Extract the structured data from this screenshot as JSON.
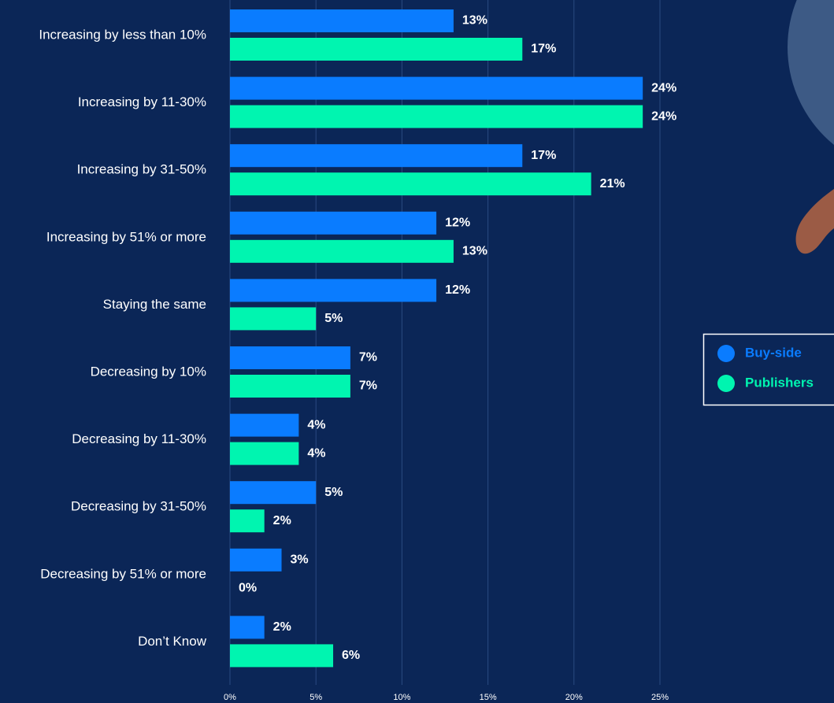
{
  "chart_data": {
    "type": "bar",
    "orientation": "horizontal",
    "categories": [
      "Increasing by less than 10%",
      "Increasing by 11-30%",
      "Increasing by 31-50%",
      "Increasing by 51% or more",
      "Staying the same",
      "Decreasing by 10%",
      "Decreasing by 11-30%",
      "Decreasing by 31-50%",
      "Decreasing by 51% or more",
      "Don’t Know"
    ],
    "series": [
      {
        "name": "Buy-side",
        "color": "#0a7cff",
        "values": [
          13,
          24,
          17,
          12,
          12,
          7,
          4,
          5,
          3,
          2
        ],
        "value_labels": [
          "13%",
          "24%",
          "17%",
          "12%",
          "12%",
          "7%",
          "4%",
          "5%",
          "3%",
          "2%"
        ]
      },
      {
        "name": "Publishers",
        "color": "#00f5b0",
        "values": [
          17,
          24,
          21,
          13,
          5,
          7,
          4,
          2,
          0,
          6
        ],
        "value_labels": [
          "17%",
          "24%",
          "21%",
          "13%",
          "5%",
          "7%",
          "4%",
          "2%",
          "0%",
          "6%"
        ]
      }
    ],
    "xlim": [
      0,
      25
    ],
    "xticks": [
      {
        "value": 0,
        "label": "0%"
      },
      {
        "value": 5,
        "label": "5%"
      },
      {
        "value": 10,
        "label": "10%"
      },
      {
        "value": 15,
        "label": "15%"
      },
      {
        "value": 20,
        "label": "20%"
      },
      {
        "value": 25,
        "label": "25%"
      }
    ],
    "grid": true
  }
}
